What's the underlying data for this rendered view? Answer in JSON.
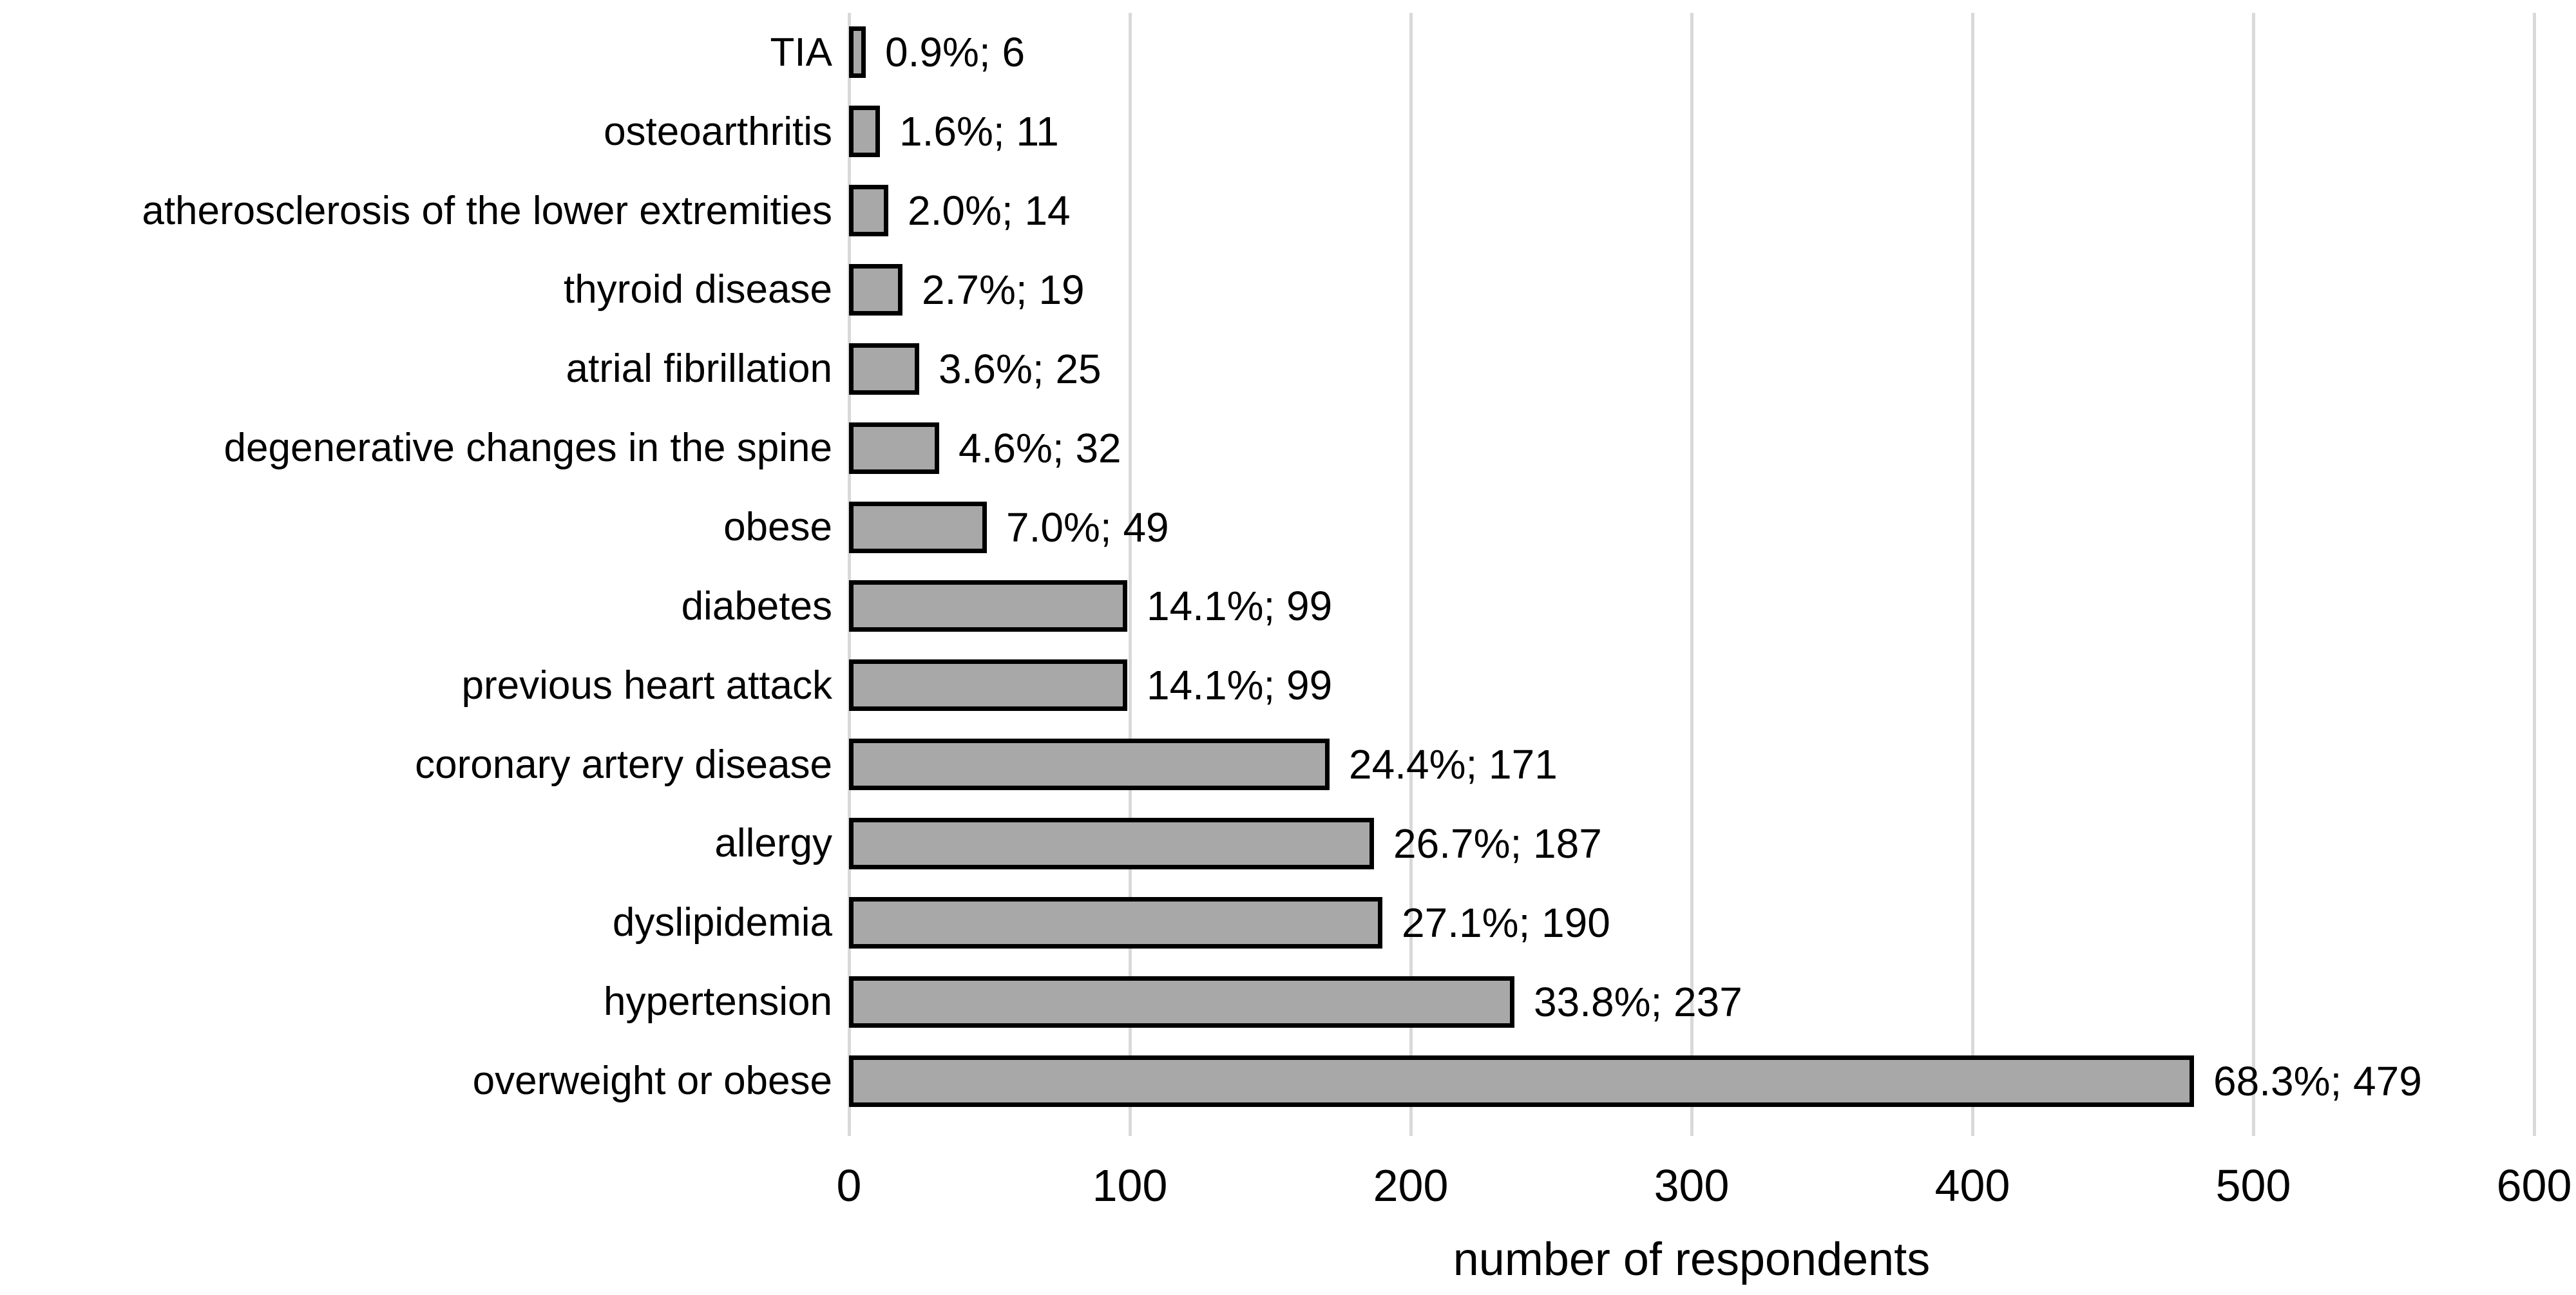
{
  "chart_data": {
    "type": "bar",
    "orientation": "horizontal",
    "title": "",
    "xlabel": "number of respondents",
    "ylabel": "",
    "xlim": [
      0,
      600
    ],
    "xticks": [
      0,
      100,
      200,
      300,
      400,
      500,
      600
    ],
    "grid": true,
    "legend": false,
    "categories": [
      "TIA",
      "osteoarthritis",
      "atherosclerosis of the lower extremities",
      "thyroid disease",
      "atrial fibrillation",
      "degenerative changes in the spine",
      "obese",
      "diabetes",
      "previous heart attack",
      "coronary artery disease",
      "allergy",
      "dyslipidemia",
      "hypertension",
      "overweight or obese"
    ],
    "values": [
      6,
      11,
      14,
      19,
      25,
      32,
      49,
      99,
      99,
      171,
      187,
      190,
      237,
      479
    ],
    "percentages": [
      0.9,
      1.6,
      2.0,
      2.7,
      3.6,
      4.6,
      7.0,
      14.1,
      14.1,
      24.4,
      26.7,
      27.1,
      33.8,
      68.3
    ],
    "data_labels": [
      "0.9%; 6",
      "1.6%; 11",
      "2.0%; 14",
      "2.7%; 19",
      "3.6%; 25",
      "4.6%; 32",
      "7.0%; 49",
      "14.1%; 99",
      "14.1%; 99",
      "24.4%; 171",
      "26.7%; 187",
      "27.1%; 190",
      "33.8%; 237",
      "68.3%; 479"
    ],
    "colors": {
      "bar_fill": "#A8A8A8",
      "bar_border": "#000000",
      "gridline": "#D9D9D9",
      "text": "#000000",
      "background": "#FFFFFF"
    }
  }
}
